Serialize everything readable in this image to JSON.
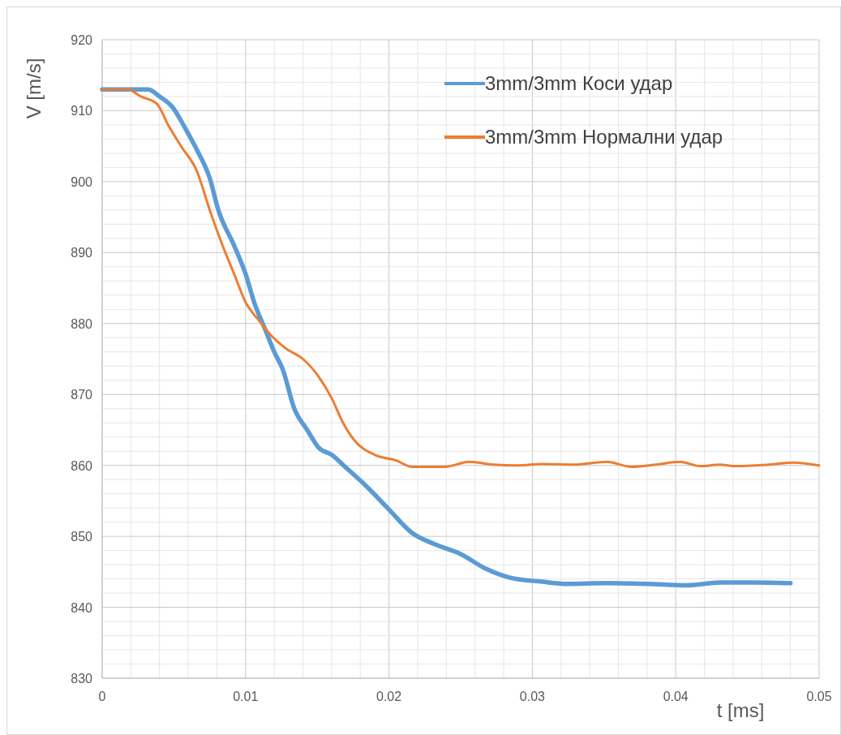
{
  "chart_data": {
    "type": "line",
    "xlabel": "t [ms]",
    "ylabel": "V [m/s]",
    "xlim": [
      0,
      0.05
    ],
    "ylim": [
      830,
      920
    ],
    "xticks": [
      0,
      {
        "value": 0.002,
        "label": null
      },
      {
        "value": 0.004,
        "label": null
      },
      {
        "value": 0.006,
        "label": null
      },
      {
        "value": 0.008,
        "label": null
      },
      0.01,
      {
        "value": 0.012,
        "label": null
      },
      {
        "value": 0.014,
        "label": null
      },
      {
        "value": 0.016,
        "label": null
      },
      {
        "value": 0.018,
        "label": null
      },
      0.02,
      {
        "value": 0.022,
        "label": null
      },
      {
        "value": 0.024,
        "label": null
      },
      {
        "value": 0.026,
        "label": null
      },
      {
        "value": 0.028,
        "label": null
      },
      0.03,
      {
        "value": 0.032,
        "label": null
      },
      {
        "value": 0.034,
        "label": null
      },
      {
        "value": 0.036,
        "label": null
      },
      {
        "value": 0.038,
        "label": null
      },
      0.04,
      {
        "value": 0.042,
        "label": null
      },
      {
        "value": 0.044,
        "label": null
      },
      {
        "value": 0.046,
        "label": null
      },
      {
        "value": 0.048,
        "label": null
      },
      0.05
    ],
    "yticks": [
      830,
      {
        "value": 832,
        "label": null
      },
      {
        "value": 834,
        "label": null
      },
      {
        "value": 836,
        "label": null
      },
      {
        "value": 838,
        "label": null
      },
      840,
      {
        "value": 842,
        "label": null
      },
      {
        "value": 844,
        "label": null
      },
      {
        "value": 846,
        "label": null
      },
      {
        "value": 848,
        "label": null
      },
      850,
      {
        "value": 852,
        "label": null
      },
      {
        "value": 854,
        "label": null
      },
      {
        "value": 856,
        "label": null
      },
      {
        "value": 858,
        "label": null
      },
      860,
      {
        "value": 862,
        "label": null
      },
      {
        "value": 864,
        "label": null
      },
      {
        "value": 866,
        "label": null
      },
      {
        "value": 868,
        "label": null
      },
      870,
      {
        "value": 872,
        "label": null
      },
      {
        "value": 874,
        "label": null
      },
      {
        "value": 876,
        "label": null
      },
      {
        "value": 878,
        "label": null
      },
      880,
      {
        "value": 882,
        "label": null
      },
      {
        "value": 884,
        "label": null
      },
      {
        "value": 886,
        "label": null
      },
      {
        "value": 888,
        "label": null
      },
      890,
      {
        "value": 892,
        "label": null
      },
      {
        "value": 894,
        "label": null
      },
      {
        "value": 896,
        "label": null
      },
      {
        "value": 898,
        "label": null
      },
      900,
      {
        "value": 902,
        "label": null
      },
      {
        "value": 904,
        "label": null
      },
      {
        "value": 906,
        "label": null
      },
      {
        "value": 908,
        "label": null
      },
      910,
      {
        "value": 912,
        "label": null
      },
      {
        "value": 914,
        "label": null
      },
      {
        "value": 916,
        "label": null
      },
      {
        "value": 918,
        "label": null
      },
      920
    ],
    "grid": true,
    "legend": "top right",
    "marker": "none",
    "line_style": "solid",
    "series": [
      {
        "name": "3mm/3mm Коси удар",
        "color": "#5b9bd5",
        "x": [
          0,
          0.0032,
          0.004,
          0.0049,
          0.0058,
          0.0066,
          0.0075,
          0.0081,
          0.0092,
          0.01,
          0.0106,
          0.0114,
          0.012,
          0.0126,
          0.0134,
          0.0143,
          0.0151,
          0.016,
          0.0171,
          0.0182,
          0.0199,
          0.0216,
          0.0233,
          0.025,
          0.0267,
          0.0284,
          0.0307,
          0.0324,
          0.0352,
          0.038,
          0.0408,
          0.0431,
          0.0454,
          0.048
        ],
        "values": [
          913,
          913,
          912,
          910.5,
          907.5,
          904.5,
          900.5,
          896,
          891,
          887,
          883,
          879,
          876,
          873.5,
          868,
          865,
          862.5,
          861.5,
          859.5,
          857.5,
          854,
          850.5,
          848.8,
          847.5,
          845.5,
          844.2,
          843.6,
          843.3,
          843.4,
          843.3,
          843.1,
          843.5,
          843.5,
          843.4
        ]
      },
      {
        "name": "3mm/3mm Нормални удар",
        "color": "#ed7d31",
        "x": [
          0,
          0.0018,
          0.0027,
          0.0038,
          0.0046,
          0.0055,
          0.0066,
          0.0075,
          0.0083,
          0.0092,
          0.01,
          0.0109,
          0.0117,
          0.0128,
          0.014,
          0.0151,
          0.016,
          0.0168,
          0.0176,
          0.019,
          0.0205,
          0.0216,
          0.0239,
          0.0256,
          0.0273,
          0.029,
          0.0307,
          0.0329,
          0.0352,
          0.0369,
          0.0386,
          0.0403,
          0.0417,
          0.0431,
          0.0442,
          0.0465,
          0.0482,
          0.05
        ],
        "values": [
          913,
          913,
          912,
          911,
          908,
          905,
          901.5,
          896,
          891.5,
          887,
          883,
          880.5,
          878.5,
          876.5,
          875,
          872.5,
          869.5,
          866,
          863.5,
          861.5,
          860.7,
          859.8,
          859.8,
          860.5,
          860.1,
          860,
          860.2,
          860.1,
          860.5,
          859.8,
          860.1,
          860.5,
          859.9,
          860.1,
          859.9,
          860.1,
          860.4,
          860
        ]
      }
    ]
  }
}
